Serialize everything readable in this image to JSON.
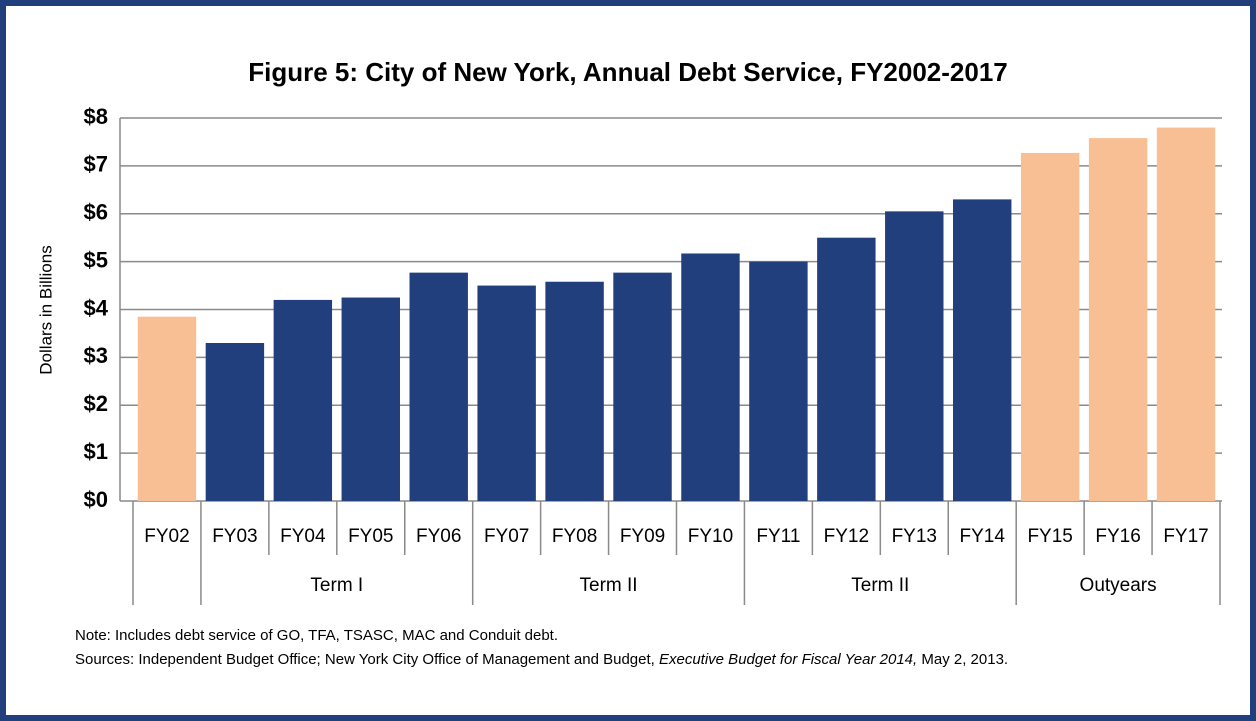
{
  "chart_data": {
    "type": "bar",
    "title": "Figure 5: City of New York, Annual Debt Service, FY2002-2017",
    "y_axis_label": "Dollars in Billions",
    "categories": [
      "FY02",
      "FY03",
      "FY04",
      "FY05",
      "FY06",
      "FY07",
      "FY08",
      "FY09",
      "FY10",
      "FY11",
      "FY12",
      "FY13",
      "FY14",
      "FY15",
      "FY16",
      "FY17"
    ],
    "values": [
      3.85,
      3.3,
      4.2,
      4.25,
      4.77,
      4.5,
      4.58,
      4.77,
      5.17,
      5.0,
      5.5,
      6.05,
      6.3,
      7.27,
      7.58,
      7.8
    ],
    "colors": [
      "#f9bf94",
      "#213f7d",
      "#213f7d",
      "#213f7d",
      "#213f7d",
      "#213f7d",
      "#213f7d",
      "#213f7d",
      "#213f7d",
      "#213f7d",
      "#213f7d",
      "#213f7d",
      "#213f7d",
      "#f9bf94",
      "#f9bf94",
      "#f9bf94"
    ],
    "groups": [
      {
        "label": null,
        "count": 1
      },
      {
        "label": "Term I",
        "count": 4
      },
      {
        "label": "Term II",
        "count": 4
      },
      {
        "label": "Term II",
        "count": 4
      },
      {
        "label": "Outyears",
        "count": 3
      }
    ],
    "ylim": [
      0,
      8
    ],
    "yticks": [
      {
        "value": 0,
        "label": "$0"
      },
      {
        "value": 1,
        "label": "$1"
      },
      {
        "value": 2,
        "label": "$2"
      },
      {
        "value": 3,
        "label": "$3"
      },
      {
        "value": 4,
        "label": "$4"
      },
      {
        "value": 5,
        "label": "$5"
      },
      {
        "value": 6,
        "label": "$6"
      },
      {
        "value": 7,
        "label": "$7"
      },
      {
        "value": 8,
        "label": "$8"
      }
    ],
    "grid": true
  },
  "notes": {
    "note": "Note: Includes debt service of GO, TFA, TSASC, MAC and Conduit debt.",
    "sources": [
      "Sources: Independent Budget Office; New York City Office of Management and Budget, ",
      "Executive Budget for Fiscal Year 2014,",
      " May 2, 2013."
    ]
  }
}
